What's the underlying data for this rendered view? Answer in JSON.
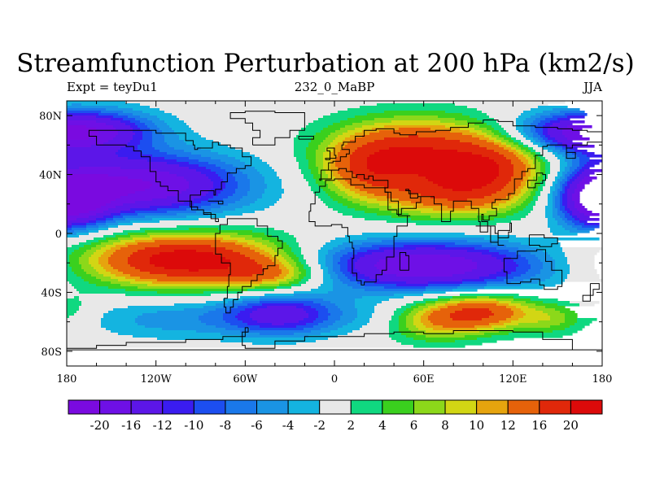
{
  "header": {
    "title": "Streamfunction Perturbation at 200 hPa (km2/s)",
    "left": "Expt = teyDu1",
    "center": "232_0_MaBP",
    "right": "JJA"
  },
  "chart_data": {
    "type": "heatmap",
    "title": "Streamfunction Perturbation at 200 hPa (km2/s)",
    "xlabel": "",
    "ylabel": "",
    "xlim": [
      -180,
      180
    ],
    "ylim": [
      -90,
      90
    ],
    "x_ticks": [
      -180,
      -120,
      -60,
      0,
      60,
      120,
      180
    ],
    "x_tick_labels": [
      "180",
      "120W",
      "60W",
      "0",
      "60E",
      "120E",
      "180"
    ],
    "y_ticks": [
      80,
      40,
      0,
      -40,
      -80
    ],
    "y_tick_labels": [
      "80N",
      "40N",
      "0",
      "40S",
      "80S"
    ],
    "colorbar": {
      "levels": [
        -20,
        -16,
        -12,
        -10,
        -8,
        -6,
        -4,
        -2,
        2,
        4,
        6,
        8,
        10,
        12,
        16,
        20
      ],
      "labels": [
        "-20",
        "-16",
        "-12",
        "-10",
        "-8",
        "-6",
        "-4",
        "-2",
        "2",
        "4",
        "6",
        "8",
        "10",
        "12",
        "16",
        "20"
      ],
      "colors": [
        "#7a0ae0",
        "#6e10e6",
        "#5c16e8",
        "#3a1cf0",
        "#1c4ef0",
        "#1a78ea",
        "#1a94e4",
        "#14b4e0",
        "#e8e8e8",
        "#10d880",
        "#3ad01e",
        "#8cd81a",
        "#d2d614",
        "#e6a40e",
        "#e6620a",
        "#e0280a",
        "#dc0a0a"
      ]
    },
    "features": [
      {
        "lon": -100,
        "lat": -18,
        "amp": 23,
        "wx": 48,
        "wy": 13
      },
      {
        "lon": -40,
        "lat": -28,
        "amp": 9,
        "wx": 25,
        "wy": 8
      },
      {
        "lon": 55,
        "lat": 58,
        "amp": 17,
        "wx": 40,
        "wy": 15
      },
      {
        "lon": 80,
        "lat": 28,
        "amp": 15,
        "wx": 38,
        "wy": 13
      },
      {
        "lon": 20,
        "lat": 42,
        "amp": 10,
        "wx": 22,
        "wy": 14
      },
      {
        "lon": 110,
        "lat": 47,
        "amp": 12,
        "wx": 26,
        "wy": 14
      },
      {
        "lon": 100,
        "lat": -53,
        "amp": 15,
        "wx": 24,
        "wy": 9
      },
      {
        "lon": 65,
        "lat": -60,
        "amp": 9,
        "wx": 25,
        "wy": 10
      },
      {
        "lon": 148,
        "lat": -58,
        "amp": 6,
        "wx": 16,
        "wy": 8
      },
      {
        "lon": -175,
        "lat": -52,
        "amp": 3,
        "wx": 10,
        "wy": 8
      },
      {
        "lon": 60,
        "lat": -22,
        "amp": -20,
        "wx": 55,
        "wy": 12
      },
      {
        "lon": -130,
        "lat": 33,
        "amp": -20,
        "wx": 48,
        "wy": 15
      },
      {
        "lon": -160,
        "lat": 70,
        "amp": -13,
        "wx": 30,
        "wy": 10
      },
      {
        "lon": 160,
        "lat": 68,
        "amp": -14,
        "wx": 32,
        "wy": 10
      },
      {
        "lon": 180,
        "lat": 22,
        "amp": -10,
        "wx": 20,
        "wy": 14
      },
      {
        "lon": -180,
        "lat": 22,
        "amp": -10,
        "wx": 20,
        "wy": 14
      },
      {
        "lon": -35,
        "lat": -55,
        "amp": -14,
        "wx": 28,
        "wy": 10
      },
      {
        "lon": -110,
        "lat": -58,
        "amp": -5,
        "wx": 40,
        "wy": 10
      },
      {
        "lon": 30,
        "lat": -58,
        "amp": -3,
        "wx": 18,
        "wy": 8
      }
    ]
  }
}
